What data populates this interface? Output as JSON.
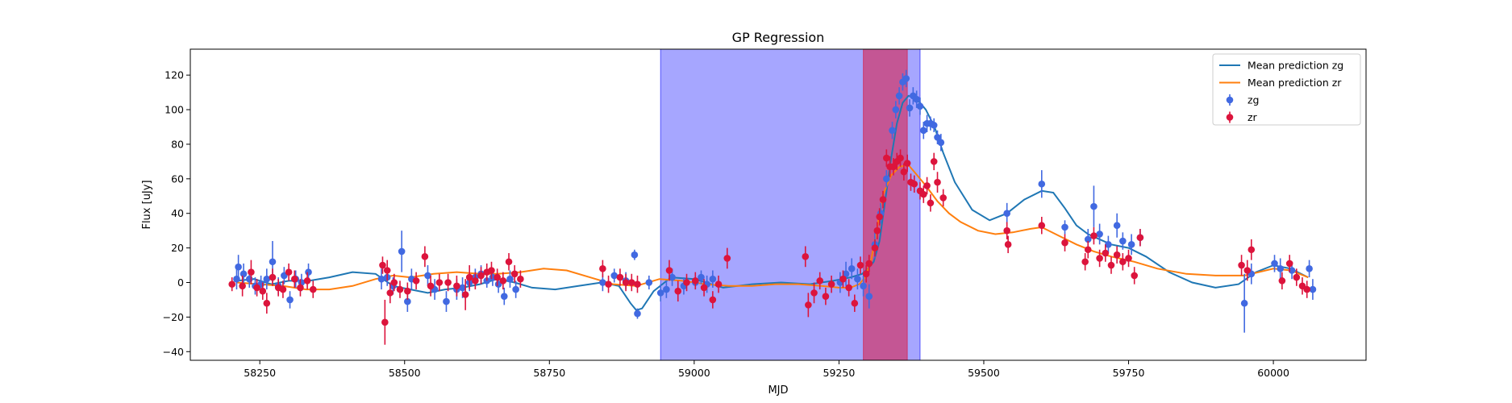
{
  "chart_data": {
    "type": "scatter",
    "title": "GP Regression",
    "xlabel": "MJD",
    "ylabel": "Flux [uJy]",
    "xlim": [
      58130,
      60160
    ],
    "ylim": [
      -45,
      135
    ],
    "xticks": [
      58250,
      58500,
      58750,
      59000,
      59250,
      59500,
      59750,
      60000
    ],
    "yticks": [
      -40,
      -20,
      0,
      20,
      40,
      60,
      80,
      100,
      120
    ],
    "grid": false,
    "legend_position": "top-right",
    "shaded_regions": [
      {
        "x0": 58942,
        "x1": 59390,
        "color": "#0000ff",
        "opacity": 0.35
      },
      {
        "x0": 59292,
        "x1": 59368,
        "color": "#dc143c",
        "opacity": 0.55
      }
    ],
    "series": [
      {
        "name": "Mean prediction zg",
        "kind": "line",
        "color": "#1f77b4",
        "x": [
          58210,
          58240,
          58270,
          58300,
          58335,
          58370,
          58410,
          58450,
          58480,
          58510,
          58540,
          58570,
          58600,
          58630,
          58660,
          58690,
          58720,
          58760,
          58800,
          58840,
          58870,
          58890,
          58900,
          58910,
          58930,
          58960,
          59000,
          59050,
          59100,
          59150,
          59200,
          59240,
          59270,
          59290,
          59300,
          59310,
          59320,
          59330,
          59340,
          59350,
          59360,
          59370,
          59380,
          59390,
          59400,
          59415,
          59430,
          59450,
          59480,
          59510,
          59540,
          59570,
          59600,
          59620,
          59640,
          59660,
          59680,
          59700,
          59720,
          59750,
          59780,
          59820,
          59860,
          59900,
          59940,
          59970,
          60000,
          60030,
          60060
        ],
        "y": [
          1,
          2,
          -1,
          1,
          1,
          3,
          6,
          5,
          -2,
          -4,
          -6,
          -4,
          -3,
          -1,
          2,
          0,
          -3,
          -4,
          -2,
          0,
          -2,
          -12,
          -16,
          -15,
          -5,
          3,
          2,
          -3,
          -1,
          0,
          -1,
          1,
          3,
          5,
          8,
          12,
          24,
          48,
          72,
          92,
          104,
          108,
          107,
          104,
          100,
          90,
          75,
          58,
          42,
          36,
          40,
          48,
          53,
          52,
          43,
          33,
          28,
          25,
          22,
          20,
          15,
          6,
          0,
          -3,
          -1,
          6,
          10,
          8,
          3
        ]
      },
      {
        "name": "Mean prediction zr",
        "kind": "line",
        "color": "#ff7f0e",
        "x": [
          58210,
          58250,
          58290,
          58330,
          58370,
          58410,
          58450,
          58480,
          58510,
          58550,
          58590,
          58630,
          58660,
          58700,
          58740,
          58780,
          58820,
          58860,
          58900,
          58940,
          58980,
          59020,
          59060,
          59100,
          59140,
          59180,
          59220,
          59250,
          59270,
          59285,
          59295,
          59305,
          59315,
          59325,
          59340,
          59355,
          59370,
          59385,
          59400,
          59420,
          59440,
          59460,
          59490,
          59520,
          59550,
          59580,
          59600,
          59630,
          59660,
          59690,
          59720,
          59760,
          59800,
          59850,
          59900,
          59950,
          60000,
          60030,
          60060
        ],
        "y": [
          0,
          -1,
          -2,
          -4,
          -4,
          -2,
          2,
          4,
          3,
          5,
          6,
          5,
          5,
          6,
          8,
          7,
          3,
          -1,
          -2,
          2,
          1,
          -1,
          -2,
          -2,
          -1,
          -1,
          -2,
          -3,
          -3,
          -1,
          3,
          12,
          30,
          50,
          62,
          67,
          68,
          62,
          56,
          47,
          40,
          35,
          30,
          28,
          29,
          31,
          32,
          27,
          22,
          18,
          15,
          12,
          8,
          5,
          4,
          4,
          8,
          7,
          3
        ]
      },
      {
        "name": "zg",
        "kind": "errorbar",
        "color": "#4169e1",
        "points": [
          [
            58210,
            2,
            6
          ],
          [
            58213,
            9,
            7
          ],
          [
            58222,
            5,
            6
          ],
          [
            58232,
            2,
            5
          ],
          [
            58242,
            -2,
            5
          ],
          [
            58252,
            -1,
            5
          ],
          [
            58262,
            2,
            6
          ],
          [
            58272,
            12,
            12
          ],
          [
            58282,
            -2,
            5
          ],
          [
            58292,
            4,
            5
          ],
          [
            58302,
            -10,
            5
          ],
          [
            58312,
            2,
            5
          ],
          [
            58322,
            0,
            5
          ],
          [
            58334,
            6,
            5
          ],
          [
            58460,
            2,
            6
          ],
          [
            58470,
            3,
            5
          ],
          [
            58480,
            -2,
            5
          ],
          [
            58495,
            18,
            12
          ],
          [
            58505,
            -11,
            6
          ],
          [
            58512,
            2,
            6
          ],
          [
            58540,
            4,
            6
          ],
          [
            58552,
            -4,
            6
          ],
          [
            58572,
            -11,
            6
          ],
          [
            58590,
            -4,
            6
          ],
          [
            58600,
            -3,
            6
          ],
          [
            58612,
            0,
            5
          ],
          [
            58622,
            3,
            5
          ],
          [
            58632,
            5,
            5
          ],
          [
            58642,
            1,
            4
          ],
          [
            58652,
            3,
            5
          ],
          [
            58662,
            -1,
            5
          ],
          [
            58672,
            -8,
            5
          ],
          [
            58682,
            2,
            5
          ],
          [
            58692,
            -4,
            5
          ],
          [
            58842,
            0,
            5
          ],
          [
            58862,
            4,
            4
          ],
          [
            58882,
            1,
            5
          ],
          [
            58897,
            16,
            3
          ],
          [
            58902,
            -18,
            3
          ],
          [
            58922,
            0,
            4
          ],
          [
            58942,
            -6,
            5
          ],
          [
            58952,
            -4,
            5
          ],
          [
            58962,
            3,
            5
          ],
          [
            58982,
            -2,
            5
          ],
          [
            59002,
            0,
            4
          ],
          [
            59012,
            3,
            4
          ],
          [
            59022,
            -1,
            5
          ],
          [
            59032,
            2,
            5
          ],
          [
            59252,
            0,
            6
          ],
          [
            59262,
            5,
            7
          ],
          [
            59272,
            8,
            6
          ],
          [
            59282,
            2,
            6
          ],
          [
            59292,
            -2,
            6
          ],
          [
            59302,
            -8,
            7
          ],
          [
            59312,
            22,
            8
          ],
          [
            59322,
            40,
            6
          ],
          [
            59332,
            60,
            5
          ],
          [
            59342,
            88,
            5
          ],
          [
            59348,
            100,
            5
          ],
          [
            59354,
            108,
            5
          ],
          [
            59360,
            116,
            5
          ],
          [
            59366,
            118,
            5
          ],
          [
            59372,
            101,
            5
          ],
          [
            59378,
            108,
            5
          ],
          [
            59384,
            106,
            5
          ],
          [
            59390,
            102,
            5
          ],
          [
            59396,
            88,
            5
          ],
          [
            59402,
            92,
            5
          ],
          [
            59408,
            92,
            4
          ],
          [
            59414,
            91,
            4
          ],
          [
            59420,
            84,
            4
          ],
          [
            59426,
            81,
            5
          ],
          [
            59540,
            40,
            6
          ],
          [
            59600,
            57,
            8
          ],
          [
            59640,
            32,
            4
          ],
          [
            59680,
            25,
            6
          ],
          [
            59690,
            44,
            12
          ],
          [
            59700,
            28,
            6
          ],
          [
            59715,
            22,
            5
          ],
          [
            59730,
            33,
            7
          ],
          [
            59740,
            24,
            5
          ],
          [
            59755,
            22,
            6
          ],
          [
            59770,
            26,
            5
          ],
          [
            59950,
            -12,
            17
          ],
          [
            59962,
            5,
            6
          ],
          [
            60002,
            11,
            5
          ],
          [
            60012,
            8,
            6
          ],
          [
            60032,
            7,
            5
          ],
          [
            60062,
            8,
            5
          ],
          [
            60068,
            -4,
            6
          ]
        ]
      },
      {
        "name": "zr",
        "kind": "errorbar",
        "color": "#dc143c",
        "points": [
          [
            58202,
            -1,
            4
          ],
          [
            58220,
            -2,
            6
          ],
          [
            58235,
            6,
            7
          ],
          [
            58245,
            -3,
            5
          ],
          [
            58255,
            -5,
            5
          ],
          [
            58262,
            -12,
            6
          ],
          [
            58272,
            3,
            5
          ],
          [
            58282,
            -3,
            5
          ],
          [
            58290,
            -4,
            5
          ],
          [
            58300,
            6,
            5
          ],
          [
            58310,
            2,
            5
          ],
          [
            58320,
            -3,
            5
          ],
          [
            58332,
            1,
            5
          ],
          [
            58342,
            -4,
            5
          ],
          [
            58462,
            10,
            5
          ],
          [
            58466,
            -23,
            13
          ],
          [
            58470,
            7,
            6
          ],
          [
            58475,
            -6,
            6
          ],
          [
            58482,
            0,
            5
          ],
          [
            58492,
            -4,
            5
          ],
          [
            58505,
            -5,
            5
          ],
          [
            58520,
            1,
            5
          ],
          [
            58535,
            15,
            6
          ],
          [
            58545,
            -2,
            6
          ],
          [
            58560,
            0,
            5
          ],
          [
            58575,
            0,
            5
          ],
          [
            58590,
            -2,
            6
          ],
          [
            58605,
            -7,
            9
          ],
          [
            58612,
            3,
            7
          ],
          [
            58622,
            1,
            5
          ],
          [
            58632,
            4,
            5
          ],
          [
            58642,
            6,
            5
          ],
          [
            58650,
            7,
            5
          ],
          [
            58660,
            3,
            5
          ],
          [
            58670,
            1,
            5
          ],
          [
            58680,
            12,
            5
          ],
          [
            58690,
            5,
            5
          ],
          [
            58700,
            2,
            5
          ],
          [
            58842,
            8,
            5
          ],
          [
            58852,
            -1,
            5
          ],
          [
            58872,
            3,
            5
          ],
          [
            58882,
            0,
            5
          ],
          [
            58892,
            0,
            5
          ],
          [
            58902,
            -1,
            5
          ],
          [
            58957,
            7,
            6
          ],
          [
            58972,
            -5,
            6
          ],
          [
            58987,
            0,
            5
          ],
          [
            59002,
            1,
            5
          ],
          [
            59017,
            -3,
            5
          ],
          [
            59032,
            -10,
            5
          ],
          [
            59042,
            -1,
            5
          ],
          [
            59057,
            14,
            6
          ],
          [
            59192,
            15,
            6
          ],
          [
            59197,
            -13,
            7
          ],
          [
            59207,
            -6,
            6
          ],
          [
            59217,
            1,
            5
          ],
          [
            59227,
            -8,
            5
          ],
          [
            59237,
            -1,
            5
          ],
          [
            59257,
            2,
            5
          ],
          [
            59267,
            -3,
            5
          ],
          [
            59277,
            -12,
            5
          ],
          [
            59287,
            10,
            5
          ],
          [
            59297,
            5,
            5
          ],
          [
            59302,
            11,
            5
          ],
          [
            59312,
            20,
            5
          ],
          [
            59316,
            30,
            5
          ],
          [
            59320,
            38,
            5
          ],
          [
            59326,
            48,
            5
          ],
          [
            59332,
            72,
            5
          ],
          [
            59338,
            67,
            6
          ],
          [
            59344,
            67,
            5
          ],
          [
            59350,
            70,
            5
          ],
          [
            59356,
            72,
            5
          ],
          [
            59362,
            64,
            5
          ],
          [
            59368,
            69,
            5
          ],
          [
            59374,
            58,
            5
          ],
          [
            59380,
            57,
            5
          ],
          [
            59390,
            53,
            5
          ],
          [
            59396,
            51,
            5
          ],
          [
            59402,
            56,
            5
          ],
          [
            59408,
            46,
            5
          ],
          [
            59414,
            70,
            5
          ],
          [
            59420,
            58,
            6
          ],
          [
            59430,
            49,
            5
          ],
          [
            59540,
            30,
            5
          ],
          [
            59542,
            22,
            5
          ],
          [
            59600,
            33,
            5
          ],
          [
            59640,
            23,
            5
          ],
          [
            59675,
            12,
            5
          ],
          [
            59680,
            19,
            5
          ],
          [
            59690,
            27,
            5
          ],
          [
            59700,
            14,
            5
          ],
          [
            59710,
            17,
            5
          ],
          [
            59720,
            10,
            5
          ],
          [
            59730,
            16,
            5
          ],
          [
            59740,
            12,
            5
          ],
          [
            59750,
            14,
            5
          ],
          [
            59760,
            4,
            5
          ],
          [
            59770,
            26,
            5
          ],
          [
            59945,
            10,
            6
          ],
          [
            59955,
            7,
            6
          ],
          [
            59962,
            19,
            6
          ],
          [
            60015,
            1,
            5
          ],
          [
            60028,
            11,
            5
          ],
          [
            60040,
            3,
            5
          ],
          [
            60050,
            -2,
            5
          ],
          [
            60058,
            -4,
            5
          ]
        ]
      }
    ]
  }
}
